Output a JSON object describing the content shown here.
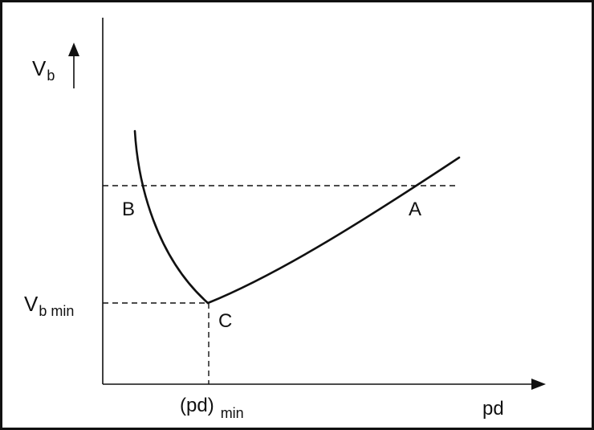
{
  "diagram": {
    "y_axis_label_main": "V",
    "y_axis_label_sub": "b",
    "x_axis_label": "pd",
    "vb_min_label_main": "V",
    "vb_min_label_sub": "b min",
    "pd_min_label_main": "(pd)",
    "pd_min_label_sub": "min",
    "point_a_label": "A",
    "point_b_label": "B",
    "point_c_label": "C"
  },
  "colors": {
    "stroke": "#111111",
    "background": "#ffffff"
  }
}
